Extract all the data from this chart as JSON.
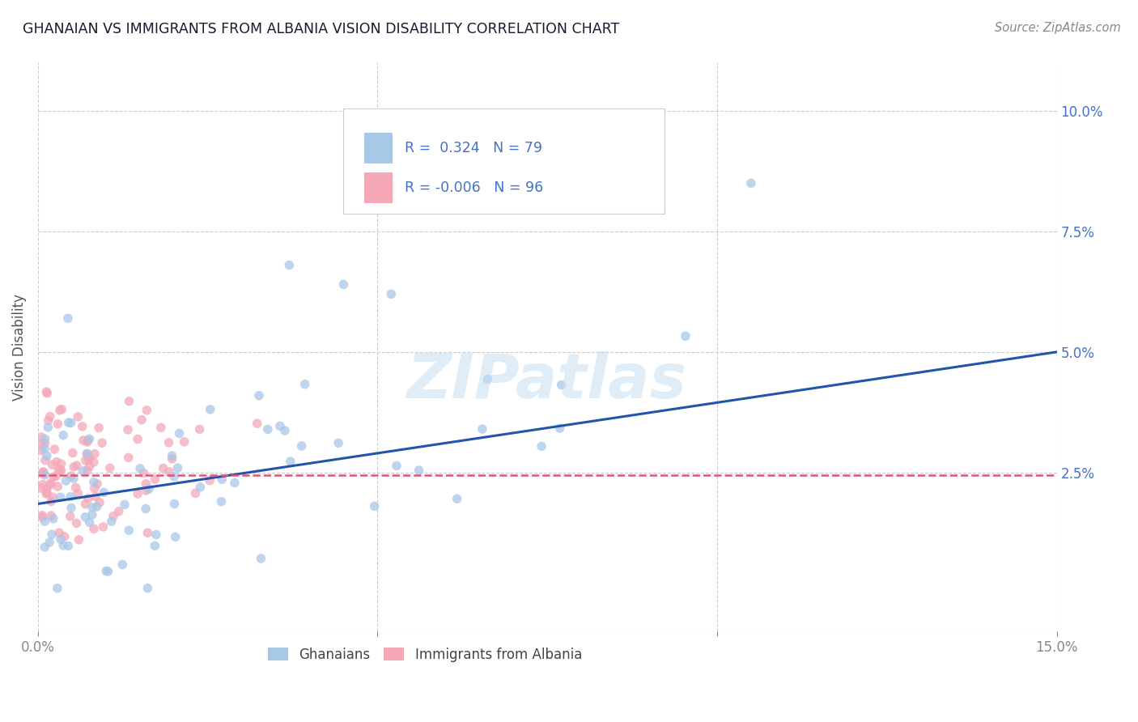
{
  "title": "GHANAIAN VS IMMIGRANTS FROM ALBANIA VISION DISABILITY CORRELATION CHART",
  "source": "Source: ZipAtlas.com",
  "ylabel": "Vision Disability",
  "xlabel": "",
  "xlim": [
    0.0,
    0.15
  ],
  "ylim": [
    -0.008,
    0.11
  ],
  "ytick_positions": [
    0.025,
    0.05,
    0.075,
    0.1
  ],
  "ytick_labels": [
    "2.5%",
    "5.0%",
    "7.5%",
    "10.0%"
  ],
  "blue_color": "#a8c8e8",
  "pink_color": "#f4a8b8",
  "line_blue": "#2255aa",
  "line_pink": "#dd5577",
  "background_color": "#ffffff",
  "grid_color": "#cccccc",
  "watermark": "ZIPatlas",
  "blue_r": "0.324",
  "blue_n": "79",
  "pink_r": "-0.006",
  "pink_n": "96",
  "blue_line_start_y": 0.0185,
  "blue_line_end_y": 0.05,
  "pink_line_y": 0.0245,
  "seed": 42
}
